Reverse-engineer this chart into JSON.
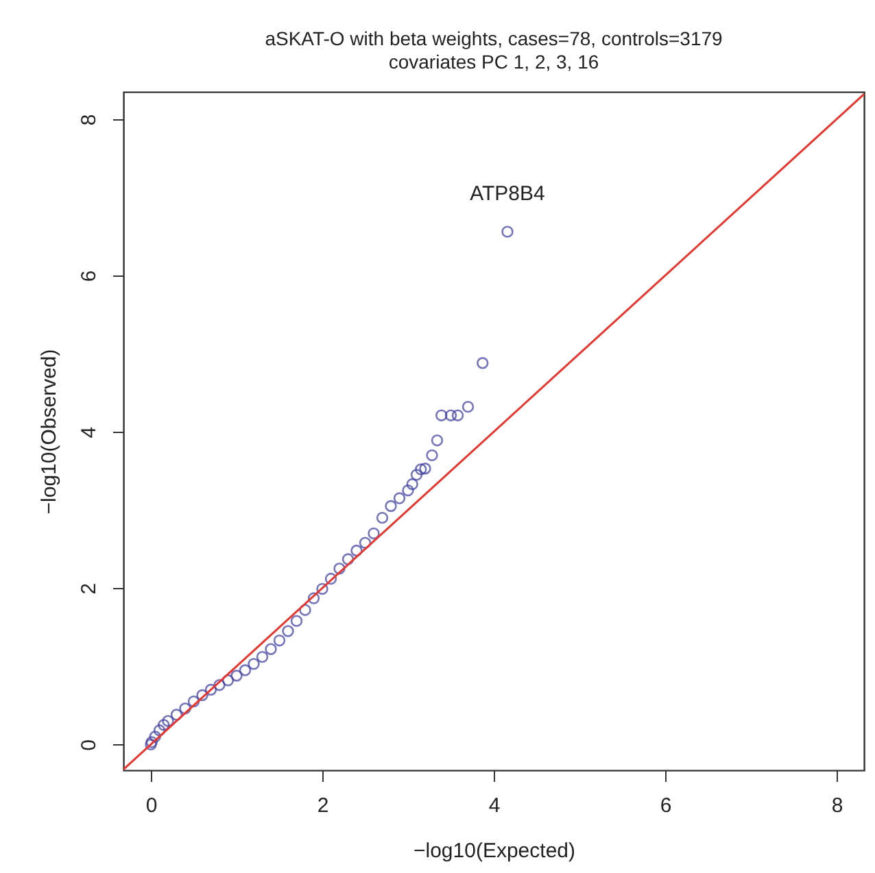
{
  "chart_data": {
    "type": "scatter",
    "title": "aSKAT-O with beta weights, cases=78, controls=3179",
    "subtitle": "covariates PC 1, 2, 3, 16",
    "xlabel": "−log10(Expected)",
    "ylabel": "−log10(Observed)",
    "xlim": [
      -0.32,
      8.32
    ],
    "ylim": [
      -0.33,
      8.35
    ],
    "xticks": [
      0,
      2,
      4,
      6,
      8
    ],
    "yticks": [
      0,
      2,
      4,
      6,
      8
    ],
    "grid": false,
    "series": [
      {
        "color": "#3b3b9e",
        "marker": "circle",
        "x": [
          0,
          0.01,
          0.05,
          0.1,
          0.15,
          0.2,
          0.3,
          0.4,
          0.5,
          0.6,
          0.7,
          0.8,
          0.9,
          1.0,
          1.1,
          1.2,
          1.3,
          1.4,
          1.5,
          1.6,
          1.7,
          1.8,
          1.9,
          2.0,
          2.1,
          2.2,
          2.3,
          2.4,
          2.5,
          2.6,
          2.7,
          2.8,
          2.9,
          3.0,
          3.05,
          3.1,
          3.15,
          3.2,
          3.28,
          3.34,
          3.39,
          3.5,
          3.58,
          3.7,
          3.87,
          4.16
        ],
        "values": [
          0,
          0.03,
          0.1,
          0.18,
          0.25,
          0.3,
          0.38,
          0.46,
          0.55,
          0.63,
          0.7,
          0.76,
          0.82,
          0.88,
          0.95,
          1.03,
          1.12,
          1.22,
          1.33,
          1.45,
          1.58,
          1.72,
          1.87,
          1.99,
          2.12,
          2.25,
          2.37,
          2.48,
          2.58,
          2.7,
          2.9,
          3.05,
          3.15,
          3.25,
          3.33,
          3.45,
          3.52,
          3.53,
          3.7,
          3.89,
          4.21,
          4.21,
          4.21,
          4.32,
          4.88,
          6.56
        ]
      },
      {
        "type": "line",
        "color": "#e8352e",
        "x": [
          -0.32,
          8.32
        ],
        "values": [
          -0.32,
          8.32
        ]
      }
    ],
    "annotations": [
      {
        "text": "ATP8B4",
        "x": 4.16,
        "y": 6.56
      }
    ]
  }
}
